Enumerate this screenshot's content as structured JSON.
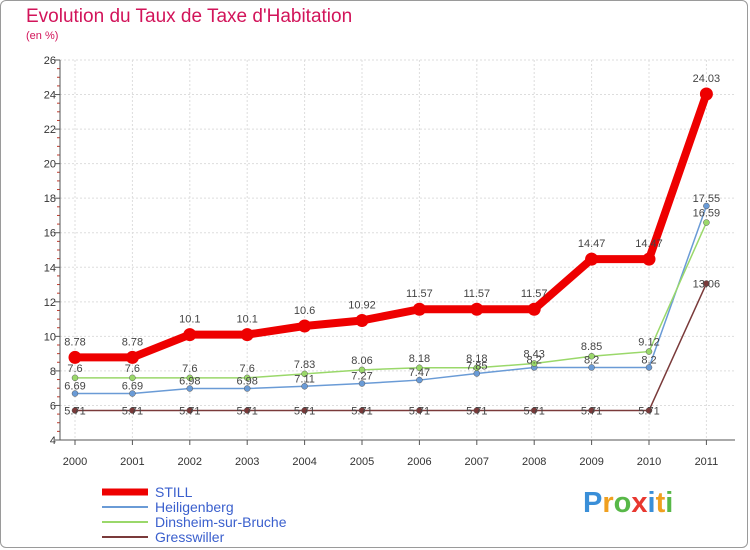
{
  "chart_data": {
    "type": "line",
    "title": "Evolution du Taux de Taxe d'Habitation",
    "subtitle": "(en %)",
    "x": [
      "2000",
      "2001",
      "2002",
      "2003",
      "2004",
      "2005",
      "2006",
      "2007",
      "2008",
      "2009",
      "2010",
      "2011"
    ],
    "ylim": [
      4,
      26
    ],
    "yticks": [
      "4",
      "6",
      "8",
      "10",
      "12",
      "14",
      "16",
      "18",
      "20",
      "22",
      "24",
      "26"
    ],
    "grid": true,
    "series": [
      {
        "name": "STILL",
        "color": "#ee0000",
        "values": [
          8.78,
          8.78,
          10.1,
          10.1,
          10.6,
          10.92,
          11.57,
          11.57,
          11.57,
          14.47,
          14.47,
          24.03
        ],
        "labels": [
          "8.78",
          "8.78",
          "10.1",
          "10.1",
          "10.6",
          "10.92",
          "11.57",
          "11.57",
          "11.57",
          "14.47",
          "14.47",
          "24.03"
        ]
      },
      {
        "name": "Heiligenberg",
        "color": "#6a9bd6",
        "values": [
          6.69,
          6.69,
          6.98,
          6.98,
          7.11,
          7.27,
          7.47,
          7.85,
          8.2,
          8.2,
          8.2,
          17.55
        ],
        "labels": [
          "6.69",
          "6.69",
          "6.98",
          "6.98",
          "7.11",
          "7.27",
          "7.47",
          "7.85",
          "8.2",
          "8.2",
          "8.2",
          "17.55"
        ]
      },
      {
        "name": "Dinsheim-sur-Bruche",
        "color": "#9ad86a",
        "values": [
          7.6,
          7.6,
          7.6,
          7.6,
          7.83,
          8.06,
          8.18,
          8.18,
          8.43,
          8.85,
          9.12,
          16.59
        ],
        "labels": [
          "7.6",
          "7.6",
          "7.6",
          "7.6",
          "7.83",
          "8.06",
          "8.18",
          "8.18",
          "8.43",
          "8.85",
          "9.12",
          "16.59"
        ]
      },
      {
        "name": "Gresswiller",
        "color": "#7a3a3a",
        "values": [
          5.71,
          5.71,
          5.71,
          5.71,
          5.71,
          5.71,
          5.71,
          5.71,
          5.71,
          5.71,
          5.71,
          13.06
        ],
        "labels": [
          "5.71",
          "5.71",
          "5.71",
          "5.71",
          "5.71",
          "5.71",
          "5.71",
          "5.71",
          "5.71",
          "5.71",
          "5.71",
          "13.06"
        ]
      }
    ]
  },
  "logo": {
    "text": "Proxiti"
  }
}
